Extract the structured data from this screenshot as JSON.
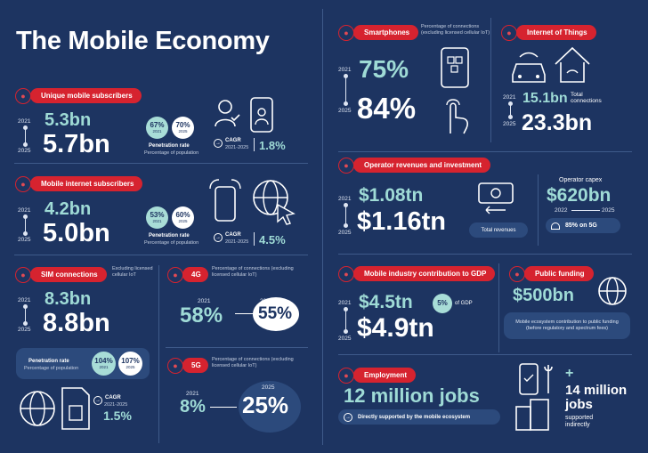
{
  "title": "The Mobile Economy",
  "year_start": "2021",
  "year_end": "2025",
  "cagr_years": "2021-2025",
  "unique_subscribers": {
    "label": "Unique mobile subscribers",
    "v2021": "5.3bn",
    "v2025": "5.7bn",
    "pen_2021": "67%",
    "pen_2025": "70%",
    "pen_title": "Penetration rate",
    "pen_sub": "Percentage of population",
    "cagr_label": "CAGR",
    "cagr": "1.8%"
  },
  "internet_subscribers": {
    "label": "Mobile internet subscribers",
    "v2021": "4.2bn",
    "v2025": "5.0bn",
    "pen_2021": "53%",
    "pen_2025": "60%",
    "pen_title": "Penetration rate",
    "pen_sub": "Percentage of population",
    "cagr_label": "CAGR",
    "cagr": "4.5%"
  },
  "sim": {
    "label": "SIM connections",
    "note": "Excluding licensed cellular IoT",
    "v2021": "8.3bn",
    "v2025": "8.8bn",
    "pen_title": "Penetration rate",
    "pen_sub": "Percentage of population",
    "pen_2021": "104%",
    "pen_2025": "107%",
    "cagr_label": "CAGR",
    "cagr": "1.5%"
  },
  "g4": {
    "label": "4G",
    "note": "Percentage of connections (excluding licensed cellular IoT)",
    "v2021": "58%",
    "v2025": "55%"
  },
  "g5": {
    "label": "5G",
    "note": "Percentage of connections (excluding licensed cellular IoT)",
    "v2021": "8%",
    "v2025": "25%"
  },
  "smartphones": {
    "label": "Smartphones",
    "note": "Percentage of connections (excluding licensed cellular IoT)",
    "v2021": "75%",
    "v2025": "84%"
  },
  "iot": {
    "label": "Internet of Things",
    "v2021": "15.1bn",
    "v2021_label": "Total connections",
    "v2025": "23.3bn"
  },
  "operator": {
    "label": "Operator revenues and investment",
    "v2021": "$1.08tn",
    "v2025": "$1.16tn",
    "rev_label": "Total revenues",
    "capex_title": "Operator capex",
    "capex": "$620bn",
    "capex_from": "2022",
    "capex_to": "2025",
    "on5g": "85% on 5G"
  },
  "gdp": {
    "label": "Mobile industry contribution to GDP",
    "v2021": "$4.5tn",
    "pct": "5%",
    "pct_label": "of GDP",
    "v2025": "$4.9tn"
  },
  "funding": {
    "label": "Public funding",
    "value": "$500bn",
    "desc": "Mobile ecosystem contribution to public funding (before regulatory and spectrum fees)"
  },
  "employment": {
    "label": "Employment",
    "value": "12 million jobs",
    "direct": "Directly supported by the mobile ecosystem",
    "plus": "+",
    "indirect_value": "14 million jobs",
    "indirect_label": "supported indirectly"
  }
}
